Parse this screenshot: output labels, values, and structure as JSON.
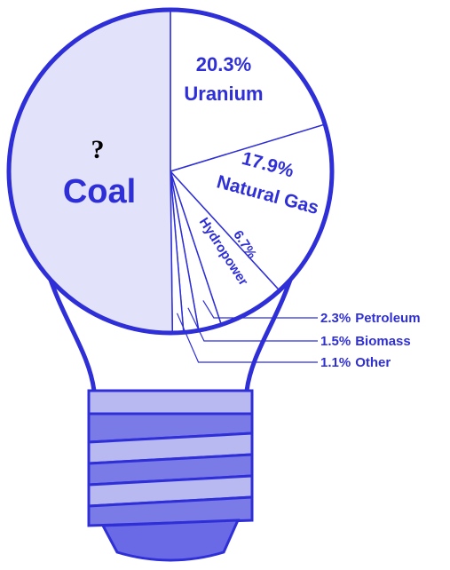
{
  "chart_data": {
    "type": "pie",
    "categories": [
      "Uranium",
      "Natural Gas",
      "Hydropower",
      "Petroleum",
      "Biomass",
      "Other",
      "Coal"
    ],
    "values": [
      20.3,
      17.9,
      6.7,
      2.3,
      1.5,
      1.1,
      50.2
    ],
    "value_labels": [
      "20.3%",
      "17.9%",
      "6.7%",
      "2.3%",
      "1.5%",
      "1.1%",
      null
    ],
    "colors": [
      "#ffffff",
      "#ffffff",
      "#ffffff",
      "#ffffff",
      "#ffffff",
      "#ffffff",
      "#e2e2fa"
    ],
    "annotation": "?"
  }
}
